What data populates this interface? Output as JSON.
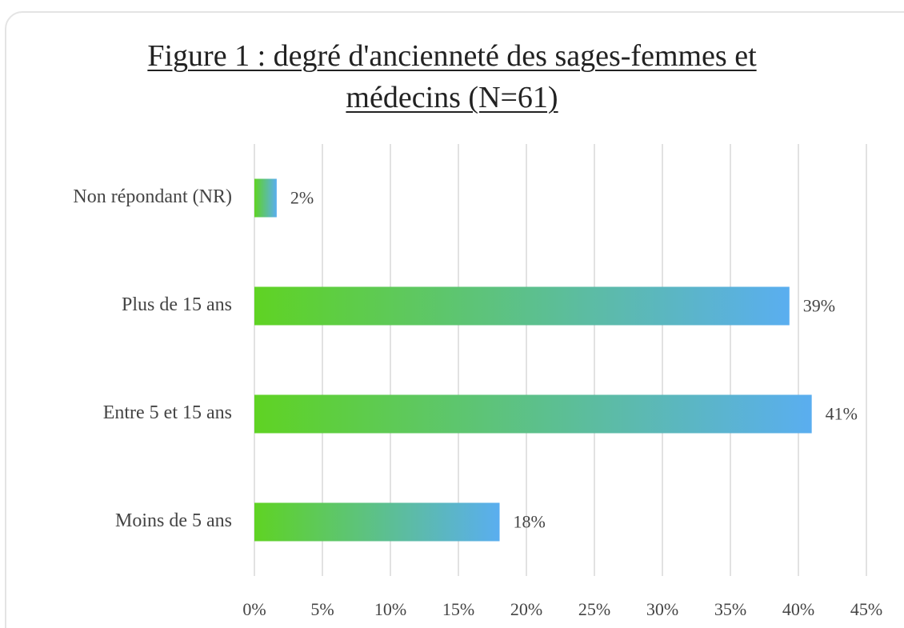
{
  "chart_data": {
    "type": "bar",
    "orientation": "horizontal",
    "title": "Figure 1 : degré d'ancienneté des sages-femmes et médecins (N=61)",
    "categories": [
      "Non répondant (NR)",
      "Plus de 15 ans",
      "Entre 5 et 15 ans",
      "Moins de 5 ans"
    ],
    "values": [
      1.64,
      39.34,
      40.98,
      18.03
    ],
    "value_labels": [
      "2%",
      "39%",
      "41%",
      "18%"
    ],
    "gradient": [
      "#5fd323",
      "#5aaef0"
    ],
    "xlim": [
      0,
      45
    ],
    "xticks": [
      {
        "value": 0,
        "label": "0%"
      },
      {
        "value": 5,
        "label": "5%"
      },
      {
        "value": 10,
        "label": "10%"
      },
      {
        "value": 15,
        "label": "15%"
      },
      {
        "value": 20,
        "label": "20%"
      },
      {
        "value": 25,
        "label": "25%"
      },
      {
        "value": 30,
        "label": "30%"
      },
      {
        "value": 35,
        "label": "35%"
      },
      {
        "value": 40,
        "label": "40%"
      },
      {
        "value": 45,
        "label": "45%"
      }
    ],
    "grid": true
  }
}
